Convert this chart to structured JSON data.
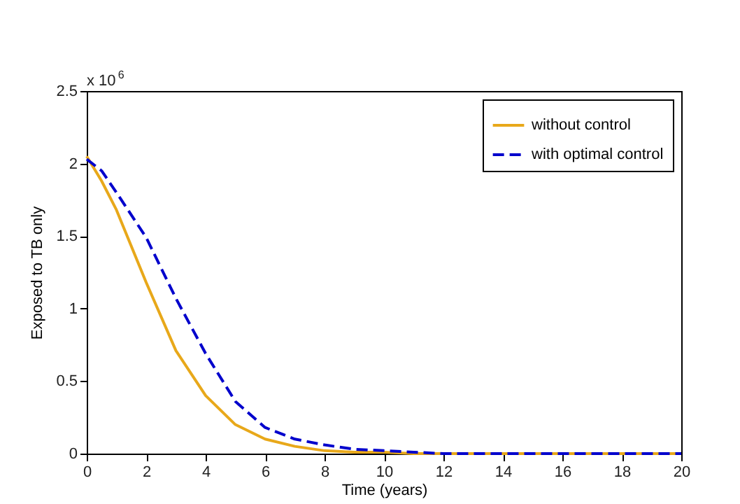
{
  "chart_data": {
    "type": "line",
    "xlabel": "Time (years)",
    "ylabel": "Exposed to TB only",
    "annotations": [
      "x 10$^{6}$"
    ],
    "xlim": [
      0,
      20
    ],
    "xticks": [
      0,
      2,
      4,
      6,
      8,
      10,
      12,
      14,
      16,
      18,
      20
    ],
    "ylim": [
      0,
      2.5
    ],
    "yticks": [
      0,
      0.5,
      1,
      1.5,
      2,
      2.5
    ],
    "x": [
      0,
      0.5,
      1,
      2,
      3,
      4,
      5,
      6,
      7,
      8,
      9,
      10,
      11,
      12,
      14,
      16,
      18,
      20
    ],
    "series": [
      {
        "name": "without control",
        "color": "#e8a81a",
        "line_style": "solid",
        "values": [
          2.05,
          1.88,
          1.68,
          1.18,
          0.71,
          0.4,
          0.2,
          0.1,
          0.05,
          0.02,
          0.01,
          0.01,
          0,
          0,
          0,
          0,
          0,
          0
        ]
      },
      {
        "name": "with optimal control",
        "color": "#0000cc",
        "line_style": "dashed",
        "values": [
          2.03,
          1.95,
          1.8,
          1.49,
          1.07,
          0.69,
          0.36,
          0.18,
          0.1,
          0.06,
          0.03,
          0.02,
          0.01,
          0,
          0,
          0,
          0,
          0
        ]
      }
    ],
    "grid": false,
    "legend": "top right"
  }
}
